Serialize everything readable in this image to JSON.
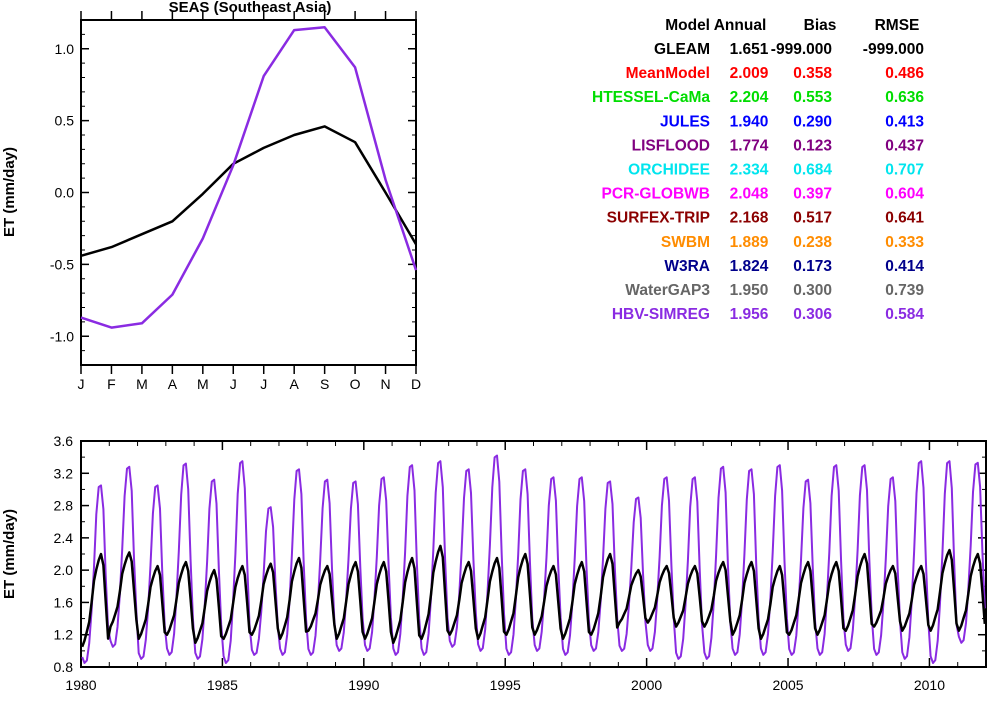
{
  "chart_data": [
    {
      "type": "line",
      "title": "SEAS (Southeast Asia)",
      "xlabel": "",
      "ylabel": "ET (mm/day)",
      "categories": [
        "J",
        "F",
        "M",
        "A",
        "M",
        "J",
        "J",
        "A",
        "S",
        "O",
        "N",
        "D"
      ],
      "ylim": [
        -1.2,
        1.2
      ],
      "yticks": [
        -1.0,
        -0.5,
        0.0,
        0.5,
        1.0
      ],
      "ytick_labels": [
        "-1.0",
        "-0.5",
        "0.0",
        "0.5",
        "1.0"
      ],
      "series": [
        {
          "name": "GLEAM",
          "color": "#000000",
          "values": [
            -0.44,
            -0.38,
            -0.29,
            -0.2,
            -0.01,
            0.2,
            0.31,
            0.4,
            0.46,
            0.35,
            0.0,
            -0.36
          ]
        },
        {
          "name": "HBV-SIMREG",
          "color": "#8a2be2",
          "values": [
            -0.87,
            -0.94,
            -0.91,
            -0.71,
            -0.32,
            0.19,
            0.81,
            1.13,
            1.15,
            0.87,
            0.09,
            -0.54
          ]
        }
      ]
    },
    {
      "type": "line",
      "title": "",
      "xlabel": "",
      "ylabel": "ET (mm/day)",
      "x_start": 1980,
      "x_end": 2012,
      "xlim": [
        1980,
        2012
      ],
      "xticks": [
        1980,
        1985,
        1990,
        1995,
        2000,
        2005,
        2010
      ],
      "xtick_labels": [
        "1980",
        "1985",
        "1990",
        "1995",
        "2000",
        "2005",
        "2010"
      ],
      "ylim": [
        0.8,
        3.6
      ],
      "yticks": [
        0.8,
        1.2,
        1.6,
        2.0,
        2.4,
        2.8,
        3.2,
        3.6
      ],
      "ytick_labels": [
        "0.8",
        "1.2",
        "1.6",
        "2.0",
        "2.4",
        "2.8",
        "3.2",
        "3.6"
      ],
      "series": [
        {
          "name": "GLEAM",
          "color": "#000000",
          "annual_peaks": [
            2.2,
            2.22,
            2.05,
            2.1,
            2.0,
            2.05,
            2.08,
            2.15,
            2.05,
            2.1,
            2.1,
            2.15,
            2.3,
            2.1,
            2.15,
            2.2,
            2.05,
            2.1,
            2.2,
            2.0,
            2.05,
            2.05,
            2.1,
            2.1,
            2.05,
            2.1,
            2.1,
            2.2,
            2.05,
            2.05,
            2.25,
            2.2
          ],
          "annual_troughs": [
            1.05,
            1.3,
            1.15,
            1.2,
            1.1,
            1.15,
            1.2,
            1.15,
            1.25,
            1.15,
            1.15,
            1.1,
            1.15,
            1.2,
            1.15,
            1.2,
            1.2,
            1.15,
            1.2,
            1.35,
            1.35,
            1.3,
            1.3,
            1.2,
            1.15,
            1.2,
            1.2,
            1.25,
            1.3,
            1.25,
            1.25,
            1.25
          ]
        },
        {
          "name": "HBV-SIMREG",
          "color": "#8a2be2",
          "annual_peaks": [
            3.05,
            3.28,
            3.05,
            3.32,
            3.12,
            3.35,
            2.78,
            3.25,
            3.12,
            3.1,
            3.15,
            3.3,
            3.35,
            3.25,
            3.42,
            3.25,
            3.15,
            3.15,
            3.1,
            2.9,
            3.15,
            3.15,
            3.28,
            3.25,
            3.3,
            3.12,
            3.3,
            3.3,
            3.15,
            3.35,
            3.35,
            3.33
          ],
          "annual_troughs": [
            0.85,
            1.05,
            0.9,
            0.95,
            0.9,
            0.85,
            0.95,
            0.95,
            0.95,
            1.0,
            1.0,
            0.95,
            0.95,
            1.05,
            1.0,
            0.95,
            1.0,
            0.95,
            1.0,
            1.0,
            1.0,
            0.9,
            0.9,
            0.95,
            0.95,
            0.95,
            0.95,
            1.0,
            0.95,
            0.9,
            0.85,
            1.1
          ]
        }
      ]
    }
  ],
  "stats_table": {
    "headers": [
      "Model",
      "Annual",
      "Bias",
      "RMSE"
    ],
    "rows": [
      {
        "model": "GLEAM",
        "annual": "1.651",
        "bias": "-999.000",
        "rmse": "-999.000",
        "color": "#000000"
      },
      {
        "model": "MeanModel",
        "annual": "2.009",
        "bias": "0.358",
        "rmse": "0.486",
        "color": "#ff0000"
      },
      {
        "model": "HTESSEL-CaMa",
        "annual": "2.204",
        "bias": "0.553",
        "rmse": "0.636",
        "color": "#00dd00"
      },
      {
        "model": "JULES",
        "annual": "1.940",
        "bias": "0.290",
        "rmse": "0.413",
        "color": "#0000ff"
      },
      {
        "model": "LISFLOOD",
        "annual": "1.774",
        "bias": "0.123",
        "rmse": "0.437",
        "color": "#800080"
      },
      {
        "model": "ORCHIDEE",
        "annual": "2.334",
        "bias": "0.684",
        "rmse": "0.707",
        "color": "#00e5ee"
      },
      {
        "model": "PCR-GLOBWB",
        "annual": "2.048",
        "bias": "0.397",
        "rmse": "0.604",
        "color": "#ff00ff"
      },
      {
        "model": "SURFEX-TRIP",
        "annual": "2.168",
        "bias": "0.517",
        "rmse": "0.641",
        "color": "#8b0000"
      },
      {
        "model": "SWBM",
        "annual": "1.889",
        "bias": "0.238",
        "rmse": "0.333",
        "color": "#ff8c00"
      },
      {
        "model": "W3RA",
        "annual": "1.824",
        "bias": "0.173",
        "rmse": "0.414",
        "color": "#00008b"
      },
      {
        "model": "WaterGAP3",
        "annual": "1.950",
        "bias": "0.300",
        "rmse": "0.739",
        "color": "#666666"
      },
      {
        "model": "HBV-SIMREG",
        "annual": "1.956",
        "bias": "0.306",
        "rmse": "0.584",
        "color": "#8a2be2"
      }
    ]
  }
}
